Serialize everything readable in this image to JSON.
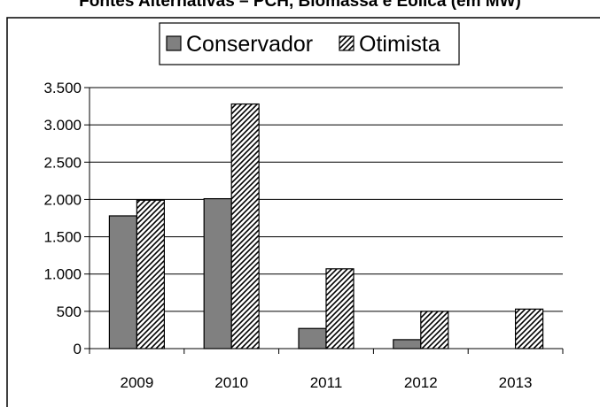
{
  "chart_data": {
    "type": "bar",
    "title": "Fontes Alternativas – PCH, Biomassa e Eólica (em MW)",
    "xlabel": "",
    "ylabel": "",
    "categories": [
      "2009",
      "2010",
      "2011",
      "2012",
      "2013"
    ],
    "series": [
      {
        "name": "Conservador",
        "values": [
          1780,
          2010,
          270,
          120,
          0
        ]
      },
      {
        "name": "Otimista",
        "values": [
          1990,
          3280,
          1070,
          500,
          530
        ]
      }
    ],
    "ylim": [
      0,
      3500
    ],
    "yticks": [
      0,
      500,
      1000,
      1500,
      2000,
      2500,
      3000,
      3500
    ],
    "ytick_labels": [
      "0",
      "500",
      "1.000",
      "1.500",
      "2.000",
      "2.500",
      "3.000",
      "3.500"
    ],
    "grid": "horizontal",
    "legend_position": "top",
    "colors": {
      "Conservador": "#808080",
      "Otimista": "hatched"
    }
  }
}
